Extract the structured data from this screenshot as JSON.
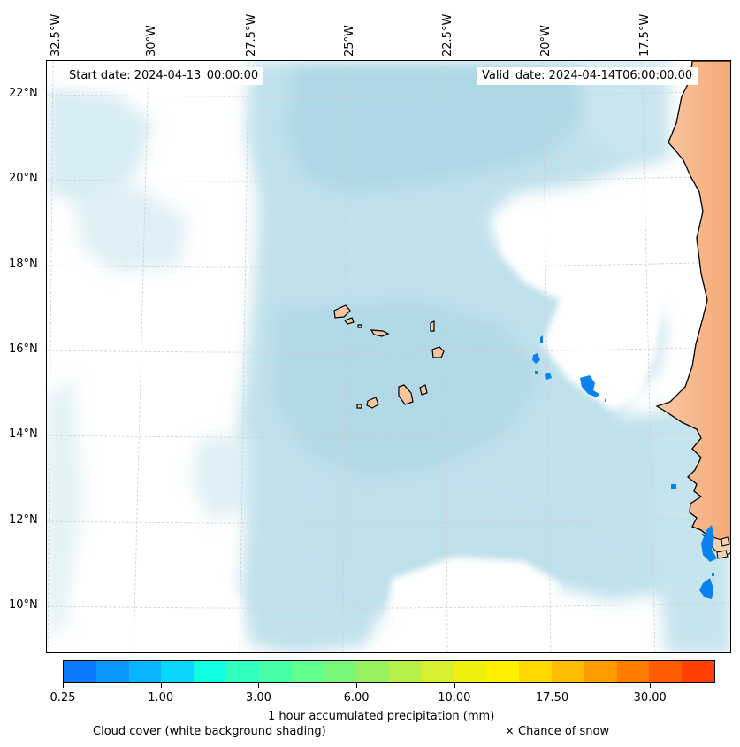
{
  "map": {
    "start_date": "Start date: 2024-04-13_00:00:00",
    "valid_date": "Valid_date: 2024-04-14T06:00:00.00",
    "longitude_labels": [
      "32.5°W",
      "30°W",
      "27.5°W",
      "25°W",
      "22.5°W",
      "20°W",
      "17.5°W"
    ],
    "latitude_labels": [
      "22°N",
      "20°N",
      "18°N",
      "16°N",
      "14°N",
      "12°N",
      "10°N"
    ],
    "colors": {
      "cloud": "#b5dcea",
      "land": "#f7c6a1",
      "coast": "#000000",
      "precip": "#0a82f0"
    }
  },
  "colorbar": {
    "label": "1 hour accumulated precipitation (mm)",
    "tick_labels": [
      "0.25",
      "1.00",
      "3.00",
      "6.00",
      "10.00",
      "17.50",
      "30.00"
    ],
    "colors": [
      "#0a78ff",
      "#0a98ff",
      "#0ab4ff",
      "#0ad6ff",
      "#10ffe0",
      "#30ffc0",
      "#48ffa8",
      "#60ff90",
      "#78f878",
      "#98f060",
      "#b8f048",
      "#d8f030",
      "#f0f010",
      "#fff000",
      "#ffd800",
      "#ffbc00",
      "#ff9c00",
      "#ff7c00",
      "#ff5c00",
      "#ff4000"
    ]
  },
  "legend": {
    "cloud_cover": "Cloud cover (white background shading)",
    "snow": "× Chance of snow"
  }
}
